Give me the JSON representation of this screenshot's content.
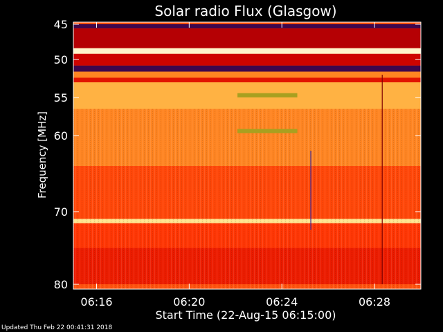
{
  "chart_data": {
    "type": "heatmap",
    "title": "Solar radio Flux (Glasgow)",
    "xlabel": "Start Time (22-Aug-15 06:15:00)",
    "ylabel": "Frequency [MHz]",
    "x_ticks": [
      "06:16",
      "06:20",
      "06:24",
      "06:28"
    ],
    "y_ticks": [
      45,
      50,
      55,
      60,
      70,
      80
    ],
    "xlim": [
      "06:15:00",
      "06:30:00"
    ],
    "ylim": [
      45,
      80
    ],
    "y_scale": "nonlinear",
    "colormap": [
      "#1e0a6e",
      "#7a0010",
      "#c80000",
      "#ff2a00",
      "#ff7a1a",
      "#ffb040",
      "#ffe080",
      "#fffbe0"
    ],
    "bands": [
      {
        "f_low": 45.0,
        "f_high": 45.6,
        "level": 0.05
      },
      {
        "f_low": 45.6,
        "f_high": 48.4,
        "level": 0.25
      },
      {
        "f_low": 48.4,
        "f_high": 49.2,
        "level": 0.97
      },
      {
        "f_low": 49.2,
        "f_high": 50.8,
        "level": 0.3
      },
      {
        "f_low": 50.8,
        "f_high": 51.6,
        "level": 0.05
      },
      {
        "f_low": 51.6,
        "f_high": 52.4,
        "level": 0.6
      },
      {
        "f_low": 52.4,
        "f_high": 53.0,
        "level": 0.35
      },
      {
        "f_low": 53.0,
        "f_high": 56.5,
        "level": 0.72
      },
      {
        "f_low": 56.5,
        "f_high": 64.0,
        "level": 0.6
      },
      {
        "f_low": 64.0,
        "f_high": 71.0,
        "level": 0.48
      },
      {
        "f_low": 71.0,
        "f_high": 71.6,
        "level": 0.88
      },
      {
        "f_low": 71.6,
        "f_high": 75.0,
        "level": 0.45
      },
      {
        "f_low": 75.0,
        "f_high": 80.0,
        "level": 0.38
      }
    ],
    "highlight_segments": [
      {
        "t_start": "06:22:05",
        "t_end": "06:24:40",
        "freq": 54.7,
        "color": "#a8a020"
      },
      {
        "t_start": "06:22:05",
        "t_end": "06:24:40",
        "freq": 59.4,
        "color": "#a8a020"
      }
    ],
    "spike_lines": [
      {
        "t": "06:25:15",
        "f_low": 62.0,
        "f_high": 72.5,
        "color": "#4030a0"
      },
      {
        "t": "06:28:20",
        "f_low": 52.0,
        "f_high": 80.0,
        "color": "#800000"
      }
    ]
  },
  "footer": {
    "updated_text": "Updated Thu Feb 22 00:41:31 2018"
  }
}
